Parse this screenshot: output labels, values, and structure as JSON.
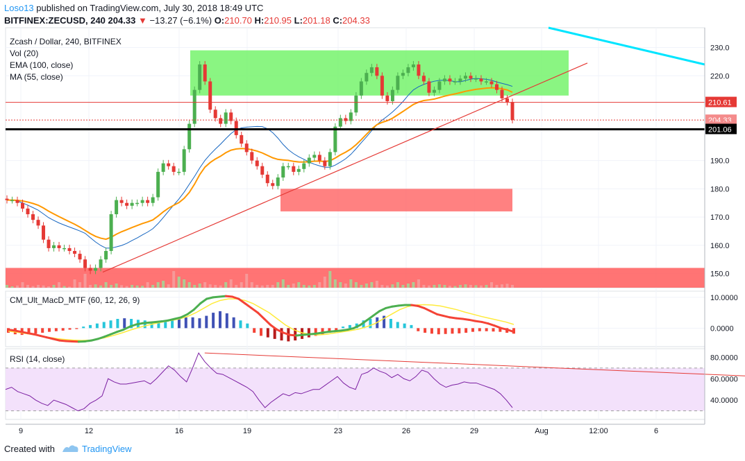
{
  "header": {
    "publisher": "Loso13",
    "published_text": " published on TradingView.com, July 30, 2018 18:49 UTC",
    "symbol": "BITFINEX:ZECUSD, 240",
    "last": "204.33",
    "change": "−13.27 (−6.1%)",
    "o_label": "O:",
    "o": "210.70",
    "h_label": "H:",
    "h": "210.95",
    "l_label": "L:",
    "l": "201.18",
    "c_label": "C:",
    "c": "204.33",
    "down_color": "#e53935"
  },
  "footer": {
    "created_with": "Created with",
    "brand": "TradingView"
  },
  "chart_data": [
    {
      "pane": "price",
      "type": "candlestick",
      "title": "Zcash / Dollar, 240, BITFINEX",
      "indicators": [
        "Vol (20)",
        "EMA (100, close)",
        "MA (55, close)"
      ],
      "y_ticks": [
        150,
        160,
        170,
        180,
        190,
        220,
        230
      ],
      "ylim": [
        145,
        237
      ],
      "x_labels": [
        "9",
        "12",
        "16",
        "19",
        "23",
        "26",
        "29",
        "Aug",
        "12:00",
        "6"
      ],
      "price_labels": [
        {
          "text": "210.61",
          "value": 210.61,
          "bg": "#e53935"
        },
        {
          "text": "204.33",
          "value": 204.33,
          "bg": "#f48b8b"
        },
        {
          "text": "01:10:49",
          "value": 201.8,
          "bg": "#f48b8b"
        },
        {
          "text": "201.06",
          "value": 201.06,
          "bg": "#000000"
        }
      ],
      "closes": [
        176,
        176,
        175,
        173,
        171,
        169,
        167,
        162,
        159,
        160,
        159,
        159,
        158,
        157,
        155,
        152,
        151,
        152,
        155,
        158,
        171,
        176,
        175,
        174,
        175,
        175,
        176,
        175,
        177,
        186,
        189,
        188,
        186,
        186,
        194,
        203,
        215,
        224,
        218,
        208,
        205,
        203,
        207,
        204,
        199,
        196,
        193,
        190,
        188,
        185,
        182,
        181,
        184,
        188,
        188,
        186,
        187,
        189,
        191,
        192,
        190,
        188,
        193,
        202,
        205,
        204,
        207,
        213,
        218,
        221,
        223,
        220,
        213,
        211,
        215,
        220,
        221,
        223,
        224,
        220,
        218,
        214,
        215,
        218,
        219,
        218,
        218,
        219,
        220,
        219,
        219,
        218,
        218,
        217,
        215,
        212,
        210.7,
        204.33
      ],
      "green_zone": [
        213,
        229
      ],
      "red_zone": [
        172,
        180
      ],
      "bottom_red_zone": [
        145,
        152
      ],
      "hlines": [
        210.61,
        201.06
      ],
      "colors": {
        "up": "#4caf50",
        "down": "#e53935",
        "ema": "#ff9800",
        "ma": "#1565c0",
        "trend": "#e53935",
        "channel": "#00e5ff"
      }
    },
    {
      "pane": "macd",
      "type": "line",
      "title": "CM_Ult_MacD_MTF (60, 12, 26, 9)",
      "y_ticks": [
        10.0,
        0.0
      ],
      "tick_labels": [
        "10.0000",
        "0.0000"
      ],
      "ylim": [
        -6,
        12
      ],
      "macd": [
        -0.5,
        -0.8,
        -1.2,
        -1.6,
        -2.0,
        -2.5,
        -3.0,
        -3.5,
        -4.0,
        -4.2,
        -4.3,
        -4.4,
        -4.3,
        -4.0,
        -3.5,
        -2.8,
        -2.0,
        -1.2,
        -0.5,
        0.5,
        1.2,
        1.6,
        1.8,
        2.0,
        2.2,
        2.5,
        3.0,
        3.5,
        4.5,
        6.0,
        8.0,
        9.5,
        10.0,
        10.2,
        10.4,
        10.2,
        9.5,
        8.0,
        6.5,
        5.0,
        3.0,
        1.0,
        -0.5,
        -1.5,
        -2.2,
        -2.4,
        -2.2,
        -2.0,
        -1.8,
        -1.5,
        -1.2,
        -1.0,
        -0.8,
        -0.5,
        0.0,
        1.0,
        2.5,
        4.0,
        5.5,
        6.5,
        7.0,
        7.3,
        7.5,
        7.5,
        7.2,
        6.5,
        5.5,
        4.5,
        4.0,
        3.5,
        3.2,
        3.0,
        2.7,
        2.3,
        2.0,
        1.5,
        0.8,
        0.0,
        -0.5,
        -1.2
      ],
      "signal": [
        -1.0,
        -1.3,
        -1.7,
        -2.1,
        -2.6,
        -3.0,
        -3.4,
        -3.7,
        -3.9,
        -4.0,
        -3.9,
        -3.6,
        -3.0,
        -2.3,
        -1.5,
        -0.6,
        0.2,
        0.9,
        1.5,
        2.0,
        2.5,
        3.0,
        3.8,
        5.0,
        6.5,
        8.0,
        9.0,
        9.5,
        9.5,
        9.0,
        8.0,
        6.5,
        5.0,
        3.0,
        1.0,
        -0.5,
        -1.5,
        -2.0,
        -2.2,
        -2.0,
        -1.6,
        -1.2,
        -0.8,
        -0.3,
        0.5,
        1.5,
        3.0,
        4.5,
        6.0,
        7.0,
        7.5,
        7.6,
        7.5,
        7.2,
        6.6,
        6.0,
        5.2,
        4.5,
        3.8,
        3.2,
        2.6,
        2.0,
        1.2
      ],
      "histogram": [
        -1.5,
        -2.0,
        -2.2,
        -2.0,
        -1.8,
        -1.5,
        -1.2,
        -1.0,
        -0.8,
        -0.5,
        -0.3,
        0.5,
        1.0,
        1.5,
        2.0,
        2.5,
        3.0,
        3.2,
        3.0,
        2.7,
        2.5,
        2.0,
        2.2,
        2.5,
        3.0,
        3.2,
        3.5,
        3.5,
        3.2,
        4.0,
        5.0,
        5.5,
        4.8,
        3.5,
        2.5,
        1.5,
        -1.5,
        -2.5,
        -3.0,
        -3.5,
        -4.0,
        -4.3,
        -4.0,
        -3.5,
        -3.0,
        -2.5,
        -2.0,
        -1.5,
        -1.0,
        0.5,
        1.0,
        1.5,
        2.5,
        3.0,
        3.5,
        4.0,
        3.0,
        2.0,
        1.5,
        1.0,
        -1.0,
        -1.5,
        -1.8,
        -2.0,
        -1.9,
        -1.8,
        -1.7,
        -1.5,
        -1.2,
        -1.0,
        -1.0,
        -1.1,
        -1.2,
        -1.5,
        -1.8
      ],
      "colors": {
        "rise": "#4caf50",
        "fall": "#f44336",
        "signal": "#ffeb3b",
        "hist_up": "#26c6da",
        "hist_up_strong": "#3f51b5",
        "hist_down": "#f44336",
        "hist_down_dark": "#b71c1c"
      }
    },
    {
      "pane": "rsi",
      "type": "line",
      "title": "RSI (14, close)",
      "y_ticks": [
        80.0,
        60.0,
        40.0
      ],
      "tick_labels": [
        "80.0000",
        "60.0000",
        "40.0000"
      ],
      "ylim": [
        22,
        88
      ],
      "band": [
        30,
        70
      ],
      "values": [
        50,
        52,
        48,
        46,
        44,
        40,
        37,
        35,
        40,
        38,
        36,
        33,
        30,
        32,
        37,
        40,
        44,
        60,
        57,
        55,
        55,
        56,
        57,
        58,
        55,
        60,
        66,
        72,
        68,
        62,
        57,
        70,
        84,
        76,
        70,
        65,
        64,
        61,
        58,
        55,
        52,
        48,
        40,
        33,
        38,
        42,
        46,
        44,
        47,
        46,
        48,
        50,
        50,
        54,
        58,
        62,
        56,
        52,
        50,
        64,
        66,
        70,
        67,
        65,
        61,
        64,
        60,
        58,
        62,
        68,
        66,
        60,
        55,
        52,
        54,
        55,
        57,
        56,
        56,
        54,
        52,
        50,
        46,
        40,
        33
      ],
      "trendline": [
        [
          33,
          84
        ],
        [
          150,
          56
        ]
      ],
      "colors": {
        "line": "#7b1fa2",
        "band": "#f3e1fb",
        "trend": "#e53935"
      }
    }
  ]
}
